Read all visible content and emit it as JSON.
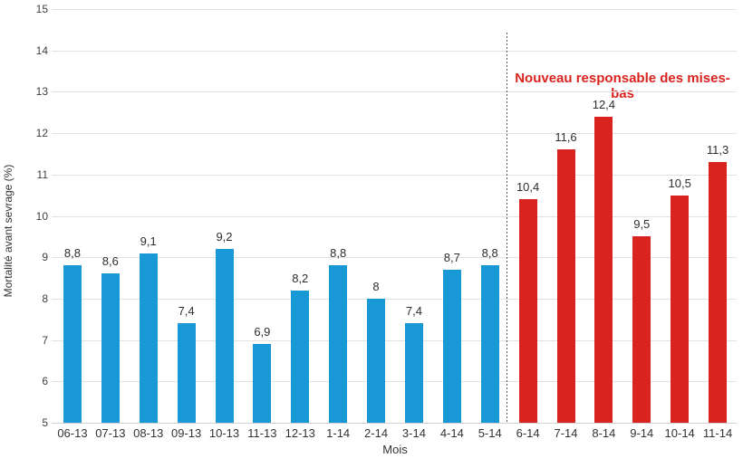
{
  "chart_data": {
    "type": "bar",
    "title": "",
    "xlabel": "Mois",
    "ylabel": "Mortalité avant sevrage (%)",
    "ylim": [
      5,
      15
    ],
    "ytick_step": 1,
    "grid": true,
    "legend": false,
    "categories": [
      "06-13",
      "07-13",
      "08-13",
      "09-13",
      "10-13",
      "11-13",
      "12-13",
      "1-14",
      "2-14",
      "3-14",
      "4-14",
      "5-14",
      "6-14",
      "7-14",
      "8-14",
      "9-14",
      "10-14",
      "11-14"
    ],
    "values": [
      8.8,
      8.6,
      9.1,
      7.4,
      9.2,
      6.9,
      8.2,
      8.8,
      8,
      7.4,
      8.7,
      8.8,
      10.4,
      11.6,
      12.4,
      9.5,
      10.5,
      11.3
    ],
    "value_labels": [
      "8,8",
      "8,6",
      "9,1",
      "7,4",
      "9,2",
      "6,9",
      "8,2",
      "8,8",
      "8",
      "7,4",
      "8,7",
      "8,8",
      "10,4",
      "11,6",
      "12,4",
      "9,5",
      "10,5",
      "11,3"
    ],
    "split_index": 12,
    "colors": {
      "before_split": "#1899D6",
      "after_split": "#D9231F",
      "annotation_text": "#D9231F",
      "gridline": "#e2e2e2"
    },
    "divider": {
      "style": "dashed-vertical",
      "between": [
        "5-14",
        "6-14"
      ]
    },
    "annotation": {
      "text": "Nouveau responsable des mises-bas"
    }
  }
}
